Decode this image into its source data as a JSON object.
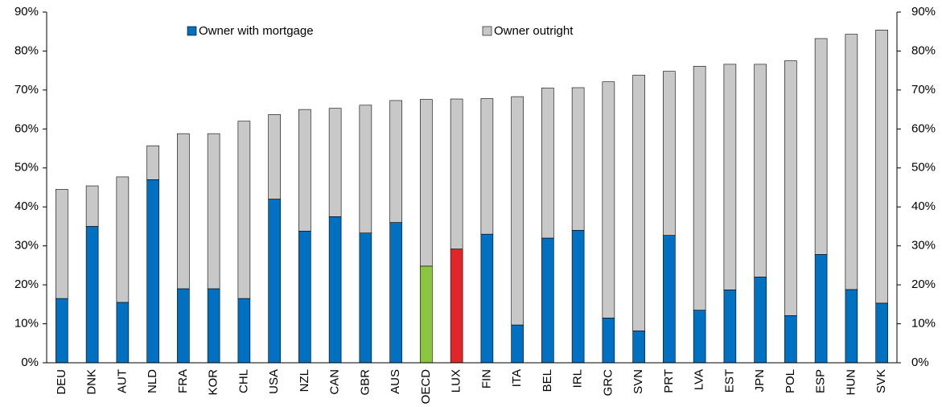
{
  "chart_data": {
    "type": "stacked_bar",
    "categories": [
      "DEU",
      "DNK",
      "AUT",
      "NLD",
      "FRA",
      "KOR",
      "CHL",
      "USA",
      "NZL",
      "CAN",
      "GBR",
      "AUS",
      "OECD",
      "LUX",
      "FIN",
      "ITA",
      "BEL",
      "IRL",
      "GRC",
      "SVN",
      "PRT",
      "LVA",
      "EST",
      "JPN",
      "POL",
      "ESP",
      "HUN",
      "SVK"
    ],
    "series": [
      {
        "name": "Owner with mortgage",
        "color": "#0070c0",
        "colors": [
          "#0070c0",
          "#0070c0",
          "#0070c0",
          "#0070c0",
          "#0070c0",
          "#0070c0",
          "#0070c0",
          "#0070c0",
          "#0070c0",
          "#0070c0",
          "#0070c0",
          "#0070c0",
          "#8cc63f",
          "#e0262a",
          "#0070c0",
          "#0070c0",
          "#0070c0",
          "#0070c0",
          "#0070c0",
          "#0070c0",
          "#0070c0",
          "#0070c0",
          "#0070c0",
          "#0070c0",
          "#0070c0",
          "#0070c0",
          "#0070c0",
          "#0070c0"
        ],
        "values": [
          16.5,
          35,
          15.5,
          47,
          19,
          19,
          16.5,
          42,
          33.8,
          37.5,
          33.3,
          36,
          24.8,
          29.2,
          33,
          9.7,
          32,
          34,
          11.5,
          8.2,
          32.7,
          13.5,
          18.7,
          22,
          12.1,
          27.8,
          18.8,
          15.3
        ]
      },
      {
        "name": "Owner outright",
        "color": "#c8c8c8",
        "values": [
          28.0,
          10.4,
          32.2,
          8.7,
          39.8,
          39.8,
          45.5,
          21.7,
          31.2,
          27.8,
          32.8,
          31.3,
          42.8,
          38.5,
          34.8,
          58.6,
          38.5,
          36.6,
          60.6,
          65.6,
          42.1,
          62.6,
          57.9,
          54.6,
          65.4,
          55.4,
          65.5,
          70.1
        ]
      }
    ],
    "ylim": [
      0,
      90
    ],
    "yticks": [
      {
        "value": 0,
        "label": "0%"
      },
      {
        "value": 10,
        "label": "10%"
      },
      {
        "value": 20,
        "label": "20%"
      },
      {
        "value": 30,
        "label": "30%"
      },
      {
        "value": 40,
        "label": "40%"
      },
      {
        "value": 50,
        "label": "50%"
      },
      {
        "value": 60,
        "label": "60%"
      },
      {
        "value": 70,
        "label": "70%"
      },
      {
        "value": 80,
        "label": "80%"
      },
      {
        "value": 90,
        "label": "90%"
      }
    ],
    "y2lim": [
      0,
      90
    ],
    "y2ticks": [
      {
        "value": 0,
        "label": "0%"
      },
      {
        "value": 10,
        "label": "10%"
      },
      {
        "value": 20,
        "label": "20%"
      },
      {
        "value": 30,
        "label": "30%"
      },
      {
        "value": 40,
        "label": "40%"
      },
      {
        "value": 50,
        "label": "50%"
      },
      {
        "value": 60,
        "label": "60%"
      },
      {
        "value": 70,
        "label": "70%"
      },
      {
        "value": 80,
        "label": "80%"
      },
      {
        "value": 90,
        "label": "90%"
      }
    ],
    "grid": false
  }
}
